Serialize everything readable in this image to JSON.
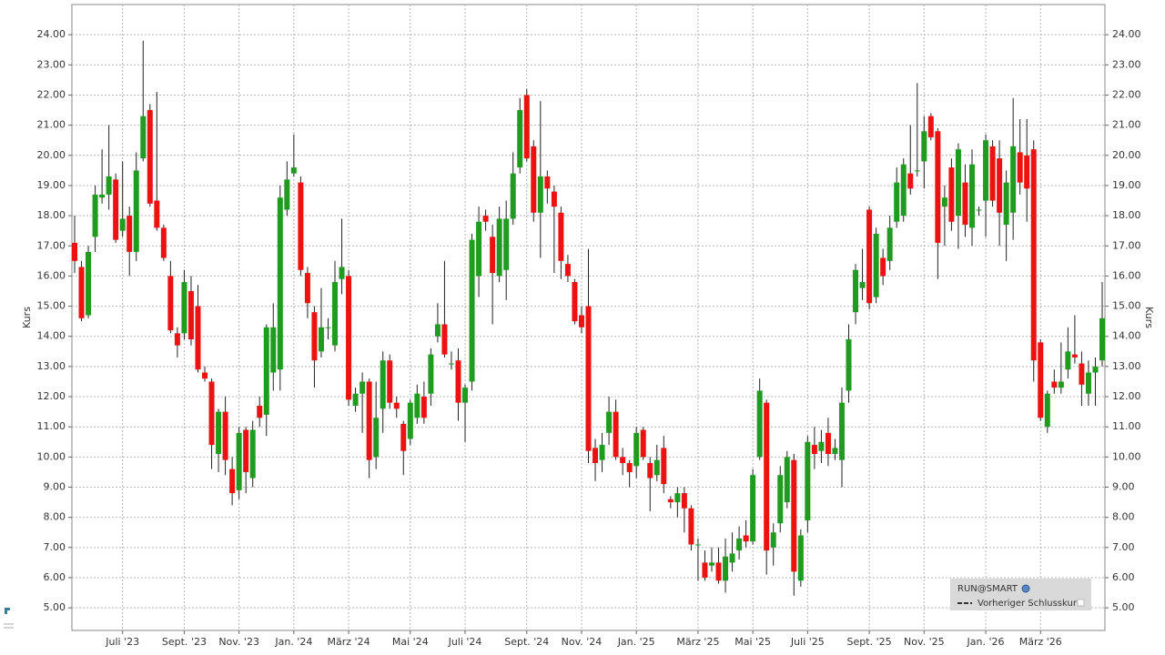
{
  "chart_data": {
    "type": "candlestick",
    "y_label": "Kurs",
    "ylim": [
      4.25,
      25.0
    ],
    "yticks": [
      {
        "value": 5,
        "label": "5.00"
      },
      {
        "value": 6,
        "label": "6.00"
      },
      {
        "value": 7,
        "label": "7.00"
      },
      {
        "value": 8,
        "label": "8.00"
      },
      {
        "value": 9,
        "label": "9.00"
      },
      {
        "value": 10,
        "label": "10.00"
      },
      {
        "value": 11,
        "label": "11.00"
      },
      {
        "value": 12,
        "label": "12.00"
      },
      {
        "value": 13,
        "label": "13.00"
      },
      {
        "value": 14,
        "label": "14.00"
      },
      {
        "value": 15,
        "label": "15.00"
      },
      {
        "value": 16,
        "label": "16.00"
      },
      {
        "value": 17,
        "label": "17.00"
      },
      {
        "value": 18,
        "label": "18.00"
      },
      {
        "value": 19,
        "label": "19.00"
      },
      {
        "value": 20,
        "label": "20.00"
      },
      {
        "value": 21,
        "label": "21.00"
      },
      {
        "value": 22,
        "label": "22.00"
      },
      {
        "value": 23,
        "label": "23.00"
      },
      {
        "value": 24,
        "label": "24.00"
      }
    ],
    "grid": true,
    "categories": [
      null,
      null,
      null,
      null,
      null,
      null,
      null,
      "Juli '23",
      null,
      null,
      null,
      null,
      null,
      null,
      null,
      null,
      "Sept. '23",
      null,
      null,
      null,
      null,
      null,
      null,
      null,
      "Nov. '23",
      null,
      null,
      null,
      null,
      null,
      null,
      null,
      "Jan. '24",
      null,
      null,
      null,
      null,
      null,
      null,
      null,
      "März '24",
      null,
      null,
      null,
      null,
      null,
      null,
      null,
      null,
      "Mai '24",
      null,
      null,
      null,
      null,
      null,
      null,
      null,
      "Juli '24",
      null,
      null,
      null,
      null,
      null,
      null,
      null,
      null,
      "Sept. '24",
      null,
      null,
      null,
      null,
      null,
      null,
      null,
      "Nov. '24",
      null,
      null,
      null,
      null,
      null,
      null,
      null,
      "Jan. '25",
      null,
      null,
      null,
      null,
      null,
      null,
      null,
      null,
      "März '25",
      null,
      null,
      null,
      null,
      null,
      null,
      null,
      "Mai '25",
      null,
      null,
      null,
      null,
      null,
      null,
      null,
      "Juli '25",
      null,
      null,
      null,
      null,
      null,
      null,
      null,
      null,
      "Sept. '25",
      null,
      null,
      null,
      null,
      null,
      null,
      null,
      "Nov. '25",
      null,
      null,
      null,
      null,
      null,
      null,
      null,
      null,
      "Jan. '26",
      null,
      null,
      null,
      null,
      null,
      null,
      null,
      "März '26",
      null,
      null,
      null,
      null,
      null,
      null,
      null,
      null,
      null
    ],
    "series": [
      {
        "name": "RUN@SMART",
        "up_color": "#1f9b1f",
        "down_color": "#ee1111",
        "candles": [
          [
            17.1,
            18.0,
            16.1,
            16.5
          ],
          [
            16.3,
            16.5,
            14.5,
            14.6
          ],
          [
            14.7,
            17.0,
            14.6,
            16.8
          ],
          [
            17.3,
            19.0,
            16.8,
            18.7
          ],
          [
            18.6,
            20.2,
            18.4,
            18.7
          ],
          [
            18.7,
            21.0,
            18.2,
            19.3
          ],
          [
            19.2,
            19.4,
            17.1,
            17.2
          ],
          [
            17.5,
            19.8,
            17.3,
            17.9
          ],
          [
            18.0,
            18.3,
            16.0,
            16.8
          ],
          [
            16.8,
            20.1,
            16.5,
            19.5
          ],
          [
            19.9,
            23.8,
            19.8,
            21.3
          ],
          [
            21.5,
            21.7,
            18.3,
            18.4
          ],
          [
            18.5,
            22.1,
            17.5,
            17.6
          ],
          [
            17.6,
            17.7,
            16.5,
            16.6
          ],
          [
            16.0,
            16.5,
            14.1,
            14.2
          ],
          [
            14.1,
            14.3,
            13.3,
            13.7
          ],
          [
            14.1,
            16.2,
            13.9,
            15.8
          ],
          [
            15.5,
            16.0,
            13.7,
            13.9
          ],
          [
            15.0,
            15.7,
            12.8,
            12.9
          ],
          [
            12.8,
            13.0,
            12.5,
            12.6
          ],
          [
            12.5,
            12.6,
            9.6,
            10.4
          ],
          [
            10.1,
            11.6,
            9.5,
            11.5
          ],
          [
            11.5,
            12.0,
            9.4,
            9.9
          ],
          [
            9.6,
            10.0,
            8.4,
            8.8
          ],
          [
            8.9,
            11.0,
            8.6,
            10.8
          ],
          [
            10.9,
            11.0,
            8.8,
            9.5
          ],
          [
            9.3,
            11.2,
            9.0,
            10.9
          ],
          [
            11.7,
            12.0,
            11.0,
            11.3
          ],
          [
            11.4,
            14.4,
            10.7,
            14.3
          ],
          [
            12.8,
            15.1,
            12.2,
            14.3
          ],
          [
            12.9,
            19.0,
            12.2,
            18.6
          ],
          [
            18.2,
            19.8,
            18.0,
            19.2
          ],
          [
            19.4,
            20.7,
            19.3,
            19.6
          ],
          [
            19.1,
            19.3,
            16.0,
            16.2
          ],
          [
            16.1,
            16.3,
            14.6,
            15.1
          ],
          [
            14.8,
            15.0,
            12.3,
            13.2
          ],
          [
            13.5,
            15.6,
            13.3,
            14.3
          ],
          [
            14.3,
            14.6,
            13.9,
            14.3
          ],
          [
            13.7,
            16.5,
            13.5,
            15.8
          ],
          [
            15.9,
            17.9,
            15.4,
            16.3
          ],
          [
            16.0,
            16.2,
            11.7,
            11.9
          ],
          [
            11.7,
            12.3,
            11.5,
            12.1
          ],
          [
            12.1,
            12.8,
            10.8,
            12.5
          ],
          [
            12.5,
            12.6,
            9.3,
            9.9
          ],
          [
            10.0,
            12.5,
            9.6,
            11.3
          ],
          [
            11.6,
            13.5,
            10.8,
            13.2
          ],
          [
            13.2,
            13.4,
            11.6,
            11.8
          ],
          [
            11.8,
            12.0,
            11.3,
            11.6
          ],
          [
            11.1,
            11.2,
            9.4,
            10.2
          ],
          [
            10.6,
            11.9,
            10.4,
            11.8
          ],
          [
            11.3,
            12.4,
            11.1,
            12.1
          ],
          [
            12.0,
            12.5,
            11.1,
            11.3
          ],
          [
            12.1,
            13.6,
            11.7,
            13.4
          ],
          [
            14.0,
            15.1,
            13.8,
            14.4
          ],
          [
            14.4,
            16.5,
            13.3,
            13.4
          ],
          [
            13.1,
            13.5,
            12.9,
            13.1
          ],
          [
            13.2,
            13.6,
            11.2,
            11.8
          ],
          [
            11.8,
            12.4,
            10.5,
            12.3
          ],
          [
            12.5,
            17.4,
            12.2,
            17.2
          ],
          [
            16.0,
            18.3,
            15.3,
            17.8
          ],
          [
            18.0,
            18.2,
            17.5,
            17.8
          ],
          [
            17.3,
            17.7,
            14.4,
            16.1
          ],
          [
            16.0,
            18.3,
            15.8,
            17.9
          ],
          [
            16.2,
            18.5,
            15.2,
            17.9
          ],
          [
            17.9,
            20.1,
            17.7,
            19.4
          ],
          [
            19.6,
            21.9,
            19.4,
            21.5
          ],
          [
            22.0,
            22.2,
            19.8,
            19.9
          ],
          [
            20.3,
            20.5,
            17.8,
            18.1
          ],
          [
            18.1,
            21.8,
            16.6,
            19.3
          ],
          [
            19.3,
            19.5,
            18.4,
            18.9
          ],
          [
            18.8,
            19.0,
            16.1,
            18.3
          ],
          [
            18.1,
            18.3,
            15.9,
            16.5
          ],
          [
            16.4,
            16.7,
            15.8,
            16.0
          ],
          [
            15.8,
            15.9,
            14.4,
            14.5
          ],
          [
            14.7,
            15.0,
            14.1,
            14.3
          ],
          [
            15.0,
            16.9,
            9.8,
            10.2
          ],
          [
            10.3,
            10.6,
            9.2,
            9.8
          ],
          [
            9.9,
            10.8,
            9.5,
            10.4
          ],
          [
            10.8,
            12.0,
            10.4,
            11.5
          ],
          [
            11.5,
            11.9,
            9.9,
            10.0
          ],
          [
            10.0,
            10.3,
            9.4,
            9.8
          ],
          [
            9.8,
            9.9,
            9.0,
            9.5
          ],
          [
            9.7,
            11.0,
            9.3,
            10.8
          ],
          [
            10.9,
            11.0,
            9.9,
            10.0
          ],
          [
            9.8,
            10.0,
            8.2,
            9.3
          ],
          [
            9.4,
            10.4,
            9.2,
            9.9
          ],
          [
            10.3,
            10.7,
            8.8,
            9.1
          ],
          [
            8.6,
            8.7,
            8.3,
            8.5
          ],
          [
            8.5,
            9.0,
            8.0,
            8.8
          ],
          [
            8.8,
            9.0,
            7.5,
            8.3
          ],
          [
            8.3,
            8.4,
            6.9,
            7.1
          ],
          [
            7.1,
            7.3,
            5.9,
            7.1
          ],
          [
            6.5,
            6.9,
            5.9,
            6.0
          ],
          [
            6.4,
            7.0,
            6.2,
            6.5
          ],
          [
            6.5,
            7.0,
            5.8,
            5.9
          ],
          [
            5.9,
            7.3,
            5.5,
            6.7
          ],
          [
            6.5,
            7.5,
            6.2,
            6.8
          ],
          [
            6.9,
            7.7,
            6.6,
            7.3
          ],
          [
            7.4,
            7.9,
            7.0,
            7.2
          ],
          [
            7.2,
            9.6,
            7.1,
            9.4
          ],
          [
            10.0,
            12.6,
            9.9,
            12.2
          ],
          [
            11.8,
            11.9,
            6.1,
            6.9
          ],
          [
            7.0,
            7.8,
            6.4,
            7.5
          ],
          [
            7.8,
            9.7,
            7.5,
            9.4
          ],
          [
            8.5,
            10.2,
            8.3,
            10.0
          ],
          [
            9.9,
            10.1,
            5.4,
            6.2
          ],
          [
            5.9,
            7.6,
            5.7,
            7.4
          ],
          [
            7.9,
            10.7,
            7.5,
            10.5
          ],
          [
            10.4,
            11.0,
            9.6,
            10.1
          ],
          [
            10.2,
            10.9,
            9.8,
            10.5
          ],
          [
            10.8,
            11.3,
            9.7,
            10.1
          ],
          [
            10.1,
            10.6,
            9.9,
            10.3
          ],
          [
            9.9,
            12.3,
            9.0,
            11.8
          ],
          [
            12.2,
            14.4,
            11.8,
            13.9
          ],
          [
            14.8,
            16.4,
            14.4,
            16.2
          ],
          [
            15.6,
            16.9,
            15.2,
            15.8
          ],
          [
            18.2,
            18.3,
            14.9,
            15.1
          ],
          [
            15.3,
            17.6,
            15.1,
            17.4
          ],
          [
            16.6,
            16.9,
            15.7,
            16.0
          ],
          [
            16.5,
            18.0,
            16.2,
            17.6
          ],
          [
            17.8,
            19.6,
            17.6,
            19.1
          ],
          [
            18.0,
            19.9,
            17.8,
            19.7
          ],
          [
            19.4,
            21.0,
            18.7,
            18.9
          ],
          [
            19.5,
            22.4,
            19.3,
            19.5
          ],
          [
            19.8,
            21.3,
            18.9,
            20.8
          ],
          [
            21.3,
            21.4,
            20.5,
            20.6
          ],
          [
            20.8,
            20.9,
            15.9,
            17.1
          ],
          [
            18.3,
            19.0,
            17.0,
            18.6
          ],
          [
            19.6,
            19.9,
            17.5,
            17.8
          ],
          [
            18.0,
            20.4,
            16.9,
            20.2
          ],
          [
            19.1,
            19.7,
            17.3,
            17.7
          ],
          [
            17.6,
            20.2,
            17.0,
            19.7
          ],
          [
            18.2,
            18.3,
            18.0,
            18.2
          ],
          [
            18.5,
            20.7,
            17.3,
            20.5
          ],
          [
            20.3,
            20.5,
            18.3,
            18.5
          ],
          [
            19.9,
            20.5,
            17.0,
            18.1
          ],
          [
            17.7,
            19.5,
            16.5,
            19.1
          ],
          [
            18.1,
            21.9,
            17.2,
            20.3
          ],
          [
            20.1,
            21.2,
            18.7,
            19.1
          ],
          [
            20.0,
            21.2,
            17.8,
            18.9
          ],
          [
            20.2,
            20.5,
            12.5,
            13.2
          ],
          [
            13.8,
            13.9,
            11.2,
            11.3
          ],
          [
            11.0,
            12.2,
            10.8,
            12.1
          ],
          [
            12.5,
            12.9,
            12.1,
            12.3
          ],
          [
            12.3,
            13.8,
            12.1,
            12.5
          ],
          [
            12.9,
            14.3,
            12.6,
            13.5
          ],
          [
            13.4,
            14.7,
            13.1,
            13.3
          ],
          [
            13.1,
            13.5,
            11.7,
            12.4
          ],
          [
            12.1,
            13.2,
            11.7,
            12.8
          ],
          [
            12.8,
            13.3,
            11.7,
            13.0
          ],
          [
            13.2,
            15.8,
            13.0,
            14.6
          ]
        ]
      }
    ],
    "previous_close_label": "Vorheriger Schlusskurs"
  }
}
